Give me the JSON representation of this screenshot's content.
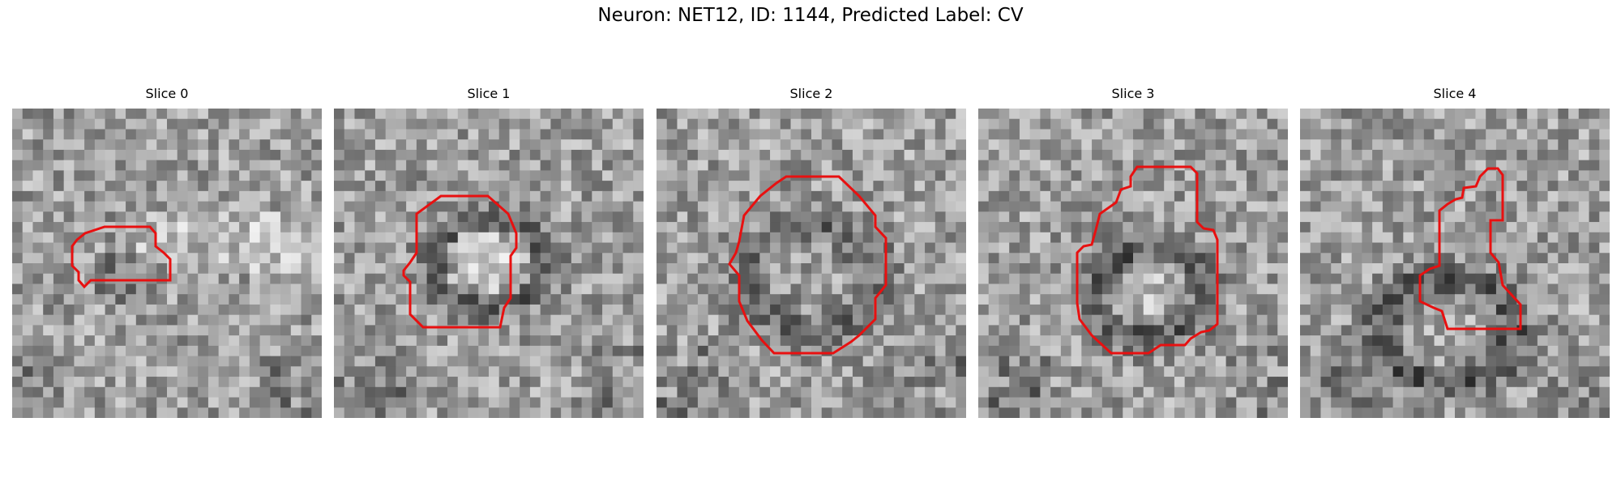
{
  "figure": {
    "title": "Neuron: NET12, ID: 1144, Predicted Label: CV",
    "colormap": "gray",
    "contour_color": "#ff0000"
  },
  "slices": [
    {
      "label": "Slice 0"
    },
    {
      "label": "Slice 1"
    },
    {
      "label": "Slice 2"
    },
    {
      "label": "Slice 3"
    },
    {
      "label": "Slice 4"
    }
  ]
}
